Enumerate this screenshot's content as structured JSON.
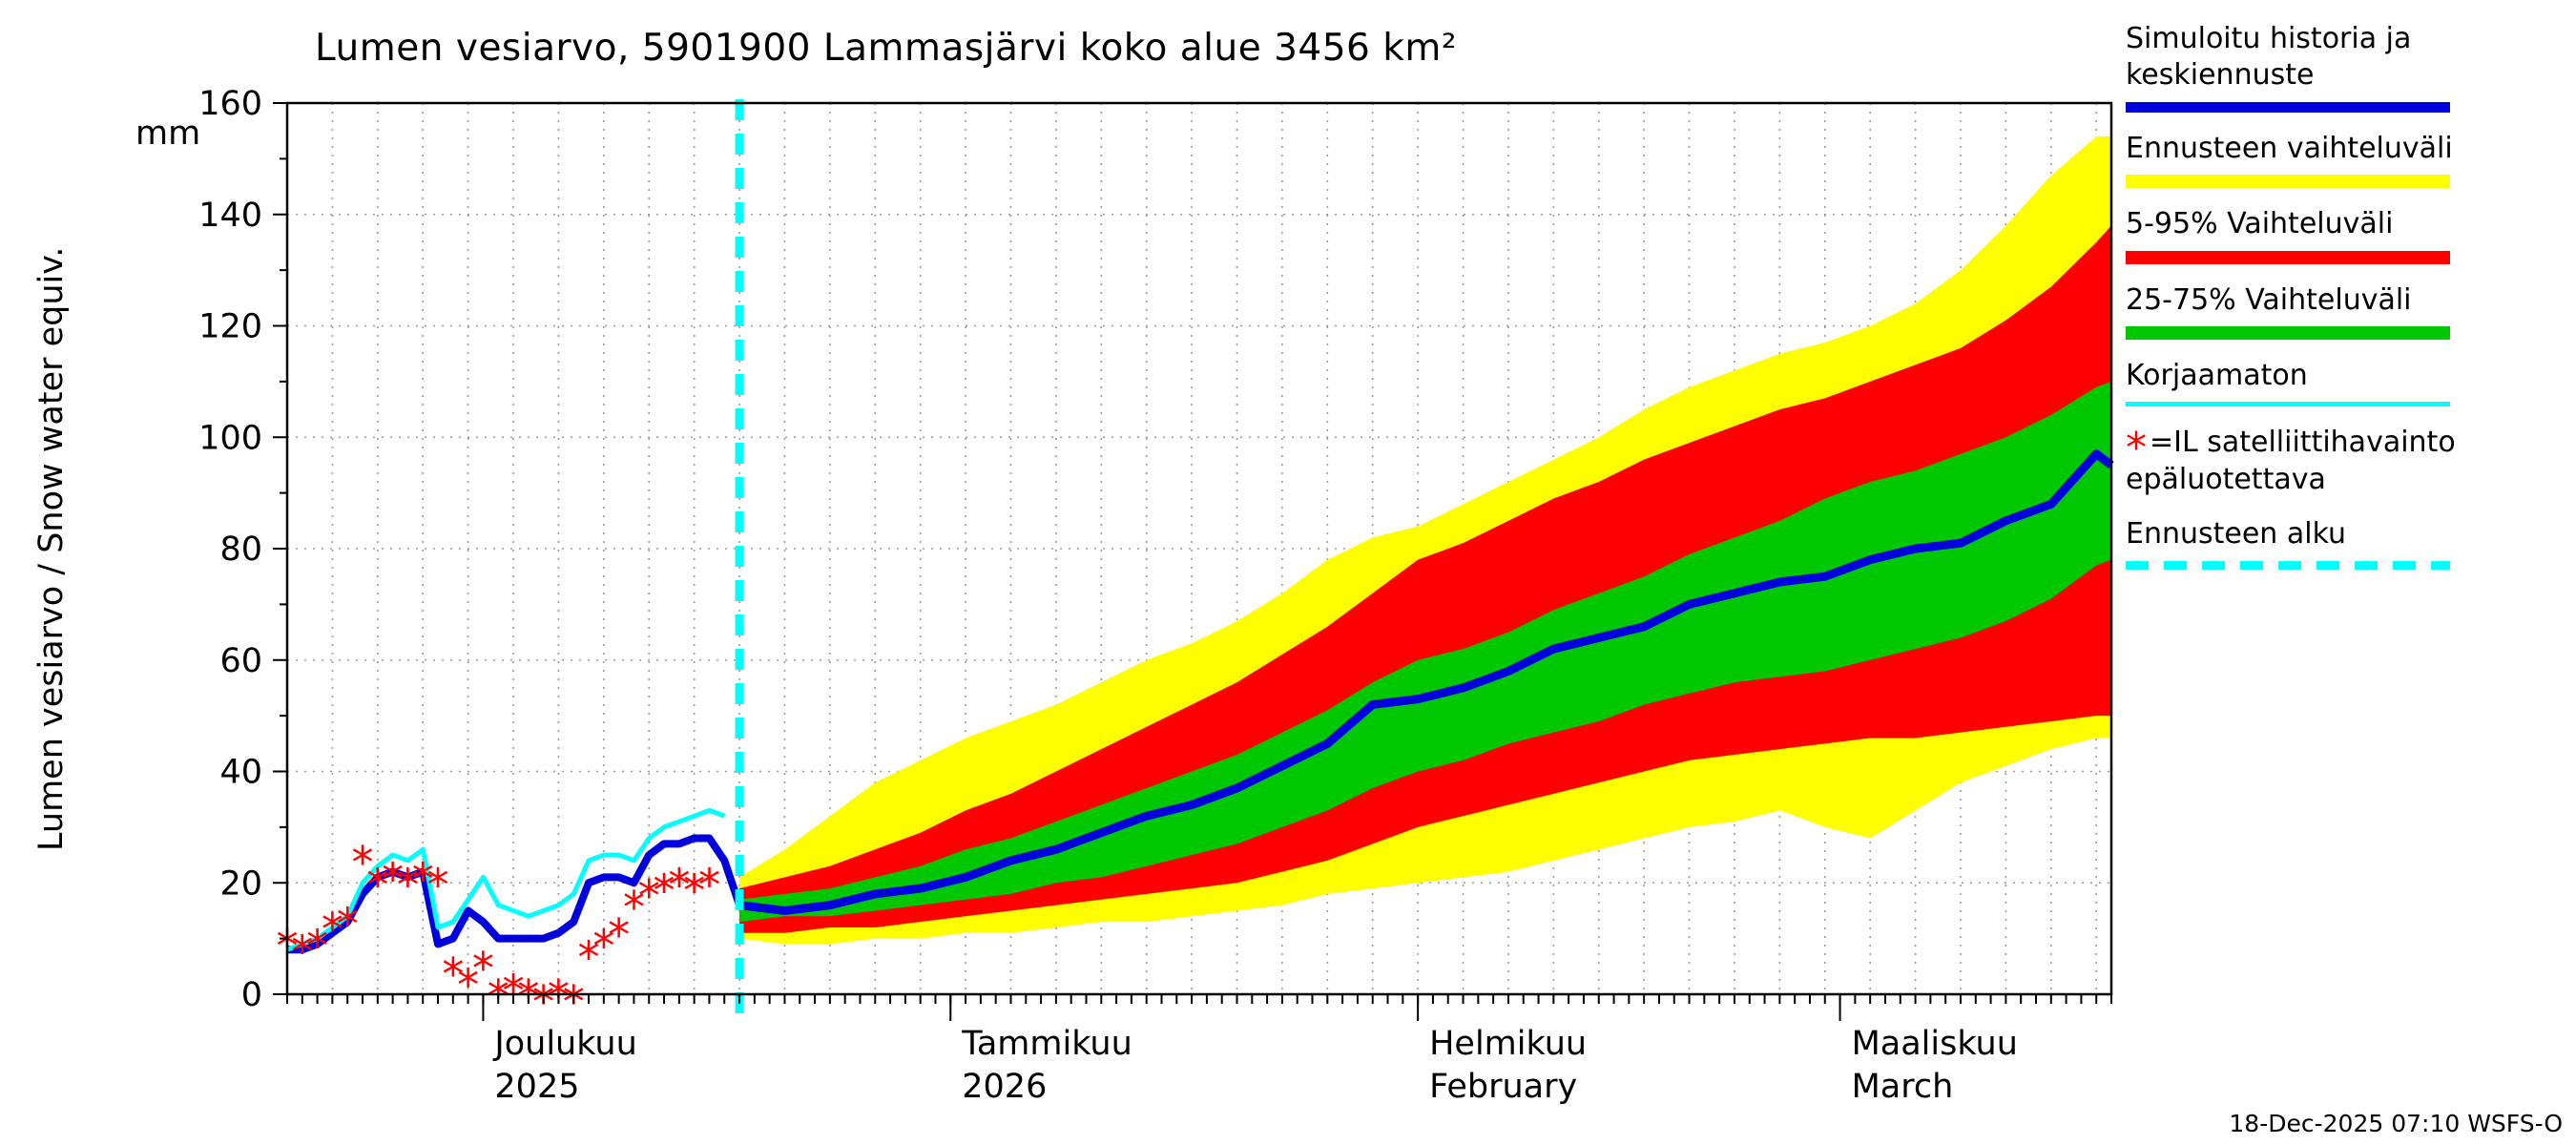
{
  "title": "Lumen vesiarvo, 5901900 Lammasjärvi koko alue 3456 km²",
  "footer": "18-Dec-2025 07:10 WSFS-O",
  "y_axis": {
    "label": "Lumen vesiarvo / Snow water equiv.",
    "unit": "mm",
    "ticks": [
      0,
      20,
      40,
      60,
      80,
      100,
      120,
      140,
      160
    ],
    "max": 160
  },
  "legend": {
    "items": [
      {
        "name": "history-mean",
        "lines": [
          "Simuloitu historia ja",
          "keskiennuste"
        ],
        "swatch": "line",
        "color": "#0000dd",
        "thickness": 11
      },
      {
        "name": "forecast-range",
        "lines": [
          "Ennusteen vaihteluväli"
        ],
        "swatch": "line",
        "color": "#ffff00",
        "thickness": 14
      },
      {
        "name": "range-5-95",
        "lines": [
          "5-95% Vaihteluväli"
        ],
        "swatch": "line",
        "color": "#ff0000",
        "thickness": 14
      },
      {
        "name": "range-25-75",
        "lines": [
          "25-75% Vaihteluväli"
        ],
        "swatch": "line",
        "color": "#00c800",
        "thickness": 14
      },
      {
        "name": "uncorrected",
        "lines": [
          "Korjaamaton"
        ],
        "swatch": "line",
        "color": "#00ffff",
        "thickness": 5
      },
      {
        "name": "satellite-note",
        "lines": [
          "=IL satelliittihavainto",
          "epäluotettava"
        ],
        "swatch": "star",
        "color": "#ff0000"
      },
      {
        "name": "forecast-start",
        "lines": [
          "Ennusteen alku"
        ],
        "swatch": "dashed",
        "color": "#00ffff",
        "thickness": 9
      }
    ]
  },
  "chart_data": {
    "type": "area",
    "title": "Lumen vesiarvo, 5901900 Lammasjärvi koko alue 3456 km²",
    "ylabel": "Lumen vesiarvo / Snow water equiv.",
    "unit": "mm",
    "ylim": [
      0,
      160
    ],
    "grid": true,
    "colors": {
      "median": "#0000dd",
      "uncorrected": "#00ffff",
      "forecast_range": "#ffff00",
      "p5_95": "#ff0000",
      "p25_75": "#00c800",
      "satellite_obs": "#ff0000",
      "forecast_start_line": "#00ffff"
    },
    "x_axis": {
      "range_days": [
        0,
        121
      ],
      "forecast_start_day": 30,
      "month_ticks": [
        {
          "day": 13,
          "label": "Joulukuu",
          "sublabel": "2025"
        },
        {
          "day": 44,
          "label": "Tammikuu",
          "sublabel": "2026"
        },
        {
          "day": 75,
          "label": "Helmikuu",
          "sublabel": "February"
        },
        {
          "day": 103,
          "label": "Maaliskuu",
          "sublabel": "March"
        }
      ]
    },
    "history": {
      "days": [
        0,
        1,
        2,
        3,
        4,
        5,
        6,
        7,
        8,
        9,
        10,
        11,
        12,
        13,
        14,
        15,
        16,
        17,
        18,
        19,
        20,
        21,
        22,
        23,
        24,
        25,
        26,
        27,
        28,
        29,
        30
      ],
      "values": [
        8,
        8,
        9,
        11,
        13,
        18,
        21,
        22,
        21,
        22,
        9,
        10,
        15,
        13,
        10,
        10,
        10,
        10,
        11,
        13,
        20,
        21,
        21,
        20,
        25,
        27,
        27,
        28,
        28,
        24,
        16
      ]
    },
    "uncorrected": {
      "days": [
        0,
        1,
        2,
        3,
        4,
        5,
        6,
        7,
        8,
        9,
        10,
        11,
        12,
        13,
        14,
        15,
        16,
        17,
        18,
        19,
        20,
        21,
        22,
        23,
        24,
        25,
        26,
        27,
        28,
        29
      ],
      "values": [
        8,
        9,
        10,
        12,
        14,
        20,
        23,
        25,
        24,
        26,
        12,
        13,
        17,
        21,
        16,
        15,
        14,
        15,
        16,
        18,
        24,
        25,
        25,
        24,
        28,
        30,
        31,
        32,
        33,
        32
      ]
    },
    "satellite_obs": {
      "days": [
        0,
        1,
        2,
        3,
        4,
        5,
        6,
        7,
        8,
        9,
        10,
        11,
        12,
        13,
        14,
        15,
        16,
        17,
        18,
        19,
        20,
        21,
        22,
        23,
        24,
        25,
        26,
        27,
        28
      ],
      "values": [
        10,
        9,
        10,
        13,
        14,
        25,
        21,
        22,
        21,
        22,
        21,
        5,
        3,
        6,
        1,
        2,
        1,
        0,
        1,
        0,
        8,
        10,
        12,
        17,
        19,
        20,
        21,
        20,
        21
      ]
    },
    "forecast": {
      "days": [
        30,
        33,
        36,
        39,
        42,
        45,
        48,
        51,
        54,
        57,
        60,
        63,
        66,
        69,
        72,
        75,
        78,
        81,
        84,
        87,
        90,
        93,
        96,
        99,
        102,
        105,
        108,
        111,
        114,
        117,
        120,
        121
      ],
      "median": [
        16,
        15,
        16,
        18,
        19,
        21,
        24,
        26,
        29,
        32,
        34,
        37,
        41,
        45,
        52,
        53,
        55,
        58,
        62,
        64,
        66,
        70,
        72,
        74,
        75,
        78,
        80,
        81,
        85,
        88,
        97,
        95
      ],
      "p25": [
        13,
        14,
        14,
        15,
        16,
        17,
        18,
        20,
        21,
        23,
        25,
        27,
        30,
        33,
        37,
        40,
        42,
        45,
        47,
        49,
        52,
        54,
        56,
        57,
        58,
        60,
        62,
        64,
        67,
        71,
        77,
        78
      ],
      "p75": [
        17,
        18,
        19,
        21,
        23,
        26,
        28,
        31,
        34,
        37,
        40,
        43,
        47,
        51,
        56,
        60,
        62,
        65,
        69,
        72,
        75,
        79,
        82,
        85,
        89,
        92,
        94,
        97,
        100,
        104,
        109,
        110
      ],
      "p5": [
        11,
        11,
        12,
        12,
        13,
        14,
        15,
        16,
        17,
        18,
        19,
        20,
        22,
        24,
        27,
        30,
        32,
        34,
        36,
        38,
        40,
        42,
        43,
        44,
        45,
        46,
        46,
        47,
        48,
        49,
        50,
        50
      ],
      "p95": [
        19,
        21,
        23,
        26,
        29,
        33,
        36,
        40,
        44,
        48,
        52,
        56,
        61,
        66,
        72,
        78,
        81,
        85,
        89,
        92,
        96,
        99,
        102,
        105,
        107,
        110,
        113,
        116,
        121,
        127,
        135,
        138
      ],
      "min": [
        10,
        9,
        9,
        10,
        10,
        11,
        11,
        12,
        13,
        13,
        14,
        15,
        16,
        18,
        19,
        20,
        21,
        22,
        24,
        26,
        28,
        30,
        31,
        33,
        30,
        28,
        33,
        38,
        41,
        44,
        46,
        46
      ],
      "max": [
        21,
        26,
        32,
        38,
        42,
        46,
        49,
        52,
        56,
        60,
        63,
        67,
        72,
        78,
        82,
        84,
        88,
        92,
        96,
        100,
        105,
        109,
        112,
        115,
        117,
        120,
        124,
        130,
        138,
        147,
        154,
        154
      ]
    }
  }
}
